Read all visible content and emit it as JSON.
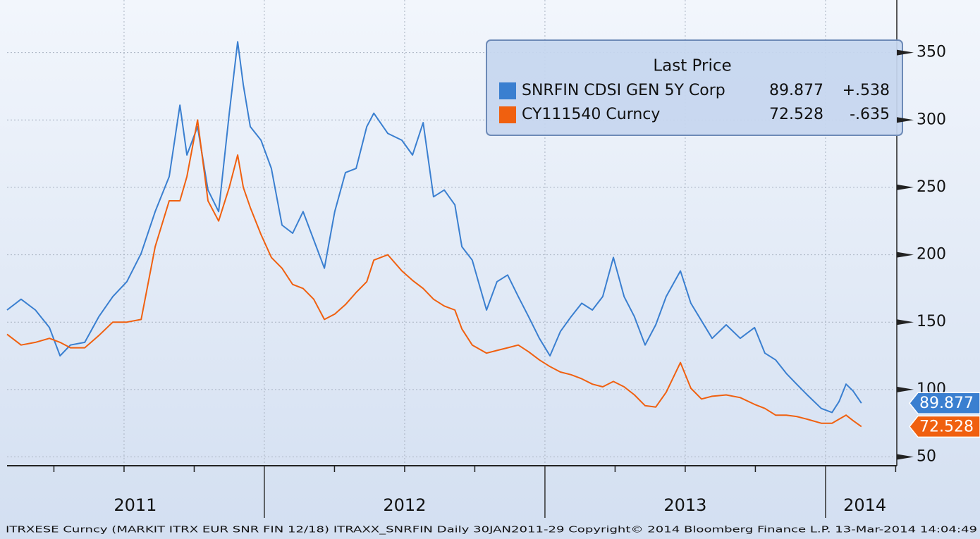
{
  "chart_data": {
    "type": "line",
    "legend_title": "Last Price",
    "footnote": "ITRXESE Curncy (MARKIT ITRX EUR SNR FIN 12/18) ITRAXX_SNRFIN  Daily 30JAN2011-29   Copyright© 2014 Bloomberg Finance L.P.   13-Mar-2014 14:04:49",
    "xlim": [
      2011.083,
      2014.249
    ],
    "xticks": [
      {
        "value": 2011.54,
        "label": "2011"
      },
      {
        "value": 2012.5,
        "label": "2012"
      },
      {
        "value": 2013.5,
        "label": "2013"
      },
      {
        "value": 2014.14,
        "label": "2014"
      }
    ],
    "x_separators": [
      2012,
      2013,
      2014
    ],
    "x_grid": [
      2011.5,
      2012,
      2012.5,
      2013,
      2013.5,
      2014
    ],
    "x_minor_ticks": [
      2011.25,
      2011.5,
      2011.75,
      2012.25,
      2012.5,
      2012.75,
      2013.25,
      2013.5,
      2013.75,
      2014.25
    ],
    "ylim": [
      44,
      389
    ],
    "yticks": [
      50,
      100,
      150,
      200,
      250,
      300,
      350
    ],
    "grid": true,
    "x": [
      2011.083,
      2011.133,
      2011.184,
      2011.234,
      2011.272,
      2011.309,
      2011.36,
      2011.41,
      2011.46,
      2011.51,
      2011.561,
      2011.611,
      2011.661,
      2011.699,
      2011.724,
      2011.762,
      2011.799,
      2011.837,
      2011.875,
      2011.905,
      2011.925,
      2011.95,
      2011.988,
      2012.025,
      2012.063,
      2012.101,
      2012.138,
      2012.176,
      2012.214,
      2012.251,
      2012.289,
      2012.327,
      2012.365,
      2012.39,
      2012.44,
      2012.49,
      2012.528,
      2012.566,
      2012.603,
      2012.641,
      2012.679,
      2012.704,
      2012.741,
      2012.792,
      2012.829,
      2012.867,
      2012.905,
      2012.942,
      2012.98,
      2013.018,
      2013.055,
      2013.093,
      2013.131,
      2013.169,
      2013.206,
      2013.244,
      2013.282,
      2013.319,
      2013.357,
      2013.395,
      2013.432,
      2013.483,
      2013.52,
      2013.558,
      2013.596,
      2013.646,
      2013.696,
      2013.747,
      2013.784,
      2013.822,
      2013.86,
      2013.897,
      2013.935,
      2013.985,
      2014.023,
      2014.048,
      2014.073,
      2014.098,
      2014.128
    ],
    "series": [
      {
        "name": "SNRFIN CDSI GEN 5Y Corp",
        "color": "#3a7fd0",
        "change": "+.538",
        "values": [
          159,
          167,
          159,
          146,
          125,
          133,
          135,
          154,
          169,
          180,
          201,
          232,
          258,
          311,
          274,
          295,
          248,
          232,
          305,
          358,
          326,
          295,
          285,
          264,
          222,
          216,
          232,
          211,
          190,
          232,
          261,
          264,
          295,
          305,
          290,
          285,
          274,
          298,
          243,
          248,
          237,
          206,
          196,
          159,
          180,
          185,
          169,
          154,
          138,
          125,
          143,
          154,
          164,
          159,
          169,
          198,
          169,
          154,
          133,
          148,
          169,
          188,
          164,
          151,
          138,
          148,
          138,
          146,
          127,
          122,
          112,
          104,
          96,
          86,
          83,
          91,
          104,
          99,
          89.877
        ]
      },
      {
        "name": "CY111540 Curncy",
        "color": "#f0600f",
        "change": "-.635",
        "values": [
          141,
          133,
          135,
          138,
          135,
          131,
          131,
          140,
          150,
          150,
          152,
          206,
          240,
          240,
          258,
          300,
          240,
          225,
          250,
          274,
          250,
          235,
          215,
          198,
          190,
          178,
          175,
          167,
          152,
          156,
          163,
          172,
          180,
          196,
          200,
          188,
          181,
          175,
          167,
          162,
          159,
          145,
          133,
          127,
          129,
          131,
          133,
          128,
          122,
          117,
          113,
          111,
          108,
          104,
          102,
          106,
          102,
          96,
          88,
          87,
          98,
          120,
          101,
          93,
          95,
          96,
          94,
          89,
          86,
          81,
          81,
          80,
          78,
          75,
          75,
          78,
          81,
          77,
          72.528
        ]
      }
    ]
  }
}
